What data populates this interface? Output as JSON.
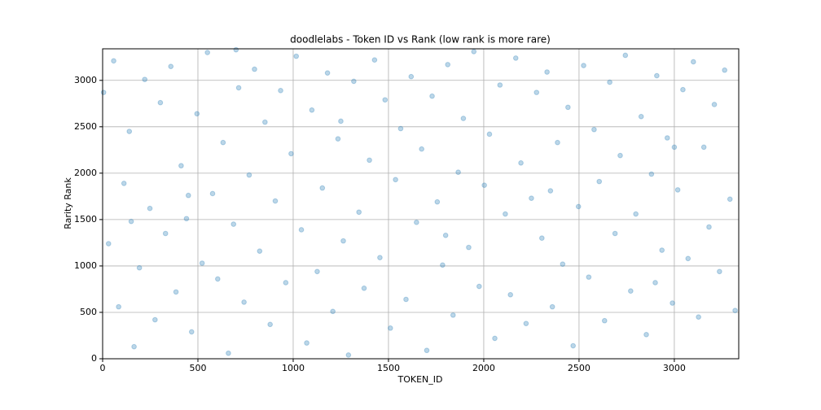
{
  "chart_data": {
    "type": "scatter",
    "title": "doodlelabs - Token ID vs Rank (low rank is more rare)",
    "xlabel": "TOKEN_ID",
    "ylabel": "Rarity Rank",
    "color": "#1f77b4",
    "alpha": 0.3,
    "grid": true,
    "xlim": [
      0,
      3338
    ],
    "ylim": [
      0,
      3340
    ],
    "xticks": [
      0,
      500,
      1000,
      1500,
      2000,
      2500,
      3000
    ],
    "yticks": [
      0,
      500,
      1000,
      1500,
      2000,
      2500,
      3000
    ],
    "x": [
      5,
      31,
      58,
      84,
      112,
      140,
      165,
      193,
      221,
      248,
      275,
      303,
      330,
      358,
      385,
      412,
      440,
      467,
      495,
      522,
      550,
      577,
      604,
      632,
      660,
      687,
      714,
      742,
      769,
      797,
      824,
      852,
      879,
      906,
      934,
      961,
      989,
      1016,
      1043,
      1071,
      1098,
      1126,
      1153,
      1180,
      1208,
      1235,
      1263,
      1290,
      1318,
      1345,
      1372,
      1400,
      1427,
      1455,
      1482,
      1510,
      1537,
      1564,
      1592,
      1619,
      1647,
      1674,
      1701,
      1729,
      1756,
      1784,
      1811,
      1839,
      1866,
      1893,
      1921,
      1948,
      1976,
      2003,
      2030,
      2058,
      2085,
      2113,
      2140,
      2168,
      2195,
      2222,
      2250,
      2277,
      2305,
      2332,
      2360,
      2387,
      2414,
      2442,
      2469,
      2497,
      2524,
      2551,
      2579,
      2606,
      2634,
      2661,
      2689,
      2716,
      2743,
      2771,
      2798,
      2826,
      2853,
      2880,
      2908,
      2935,
      2963,
      2990,
      3018,
      3045,
      3072,
      3100,
      3127,
      3155,
      3182,
      3210,
      3237,
      3264,
      3292,
      3319,
      150,
      700,
      1250,
      1800,
      2350,
      2900,
      450,
      3000
    ],
    "y": [
      2870,
      1240,
      3210,
      560,
      1890,
      2450,
      130,
      980,
      3010,
      1620,
      420,
      2760,
      1350,
      3150,
      720,
      2080,
      1510,
      290,
      2640,
      1030,
      3300,
      1780,
      860,
      2330,
      60,
      1450,
      2920,
      610,
      1980,
      3120,
      1160,
      2550,
      370,
      1700,
      2890,
      820,
      2210,
      3260,
      1390,
      170,
      2680,
      940,
      1840,
      3080,
      510,
      2370,
      1270,
      40,
      2990,
      1580,
      760,
      2140,
      3220,
      1090,
      2790,
      330,
      1930,
      2480,
      640,
      3040,
      1470,
      2260,
      90,
      2830,
      1690,
      1010,
      3170,
      470,
      2010,
      2590,
      1200,
      3310,
      780,
      1870,
      2420,
      220,
      2950,
      1560,
      690,
      3240,
      2110,
      380,
      1730,
      2870,
      1300,
      3090,
      560,
      2330,
      1020,
      2710,
      140,
      1640,
      3160,
      880,
      2470,
      1910,
      410,
      2980,
      1350,
      2190,
      3270,
      730,
      1560,
      2610,
      260,
      1990,
      3050,
      1170,
      2380,
      600,
      1820,
      2900,
      1080,
      3200,
      450,
      2280,
      1420,
      2740,
      940,
      3110,
      1720,
      520,
      1480,
      3330,
      2560,
      1330,
      1810,
      820,
      1760,
      2280
    ]
  }
}
